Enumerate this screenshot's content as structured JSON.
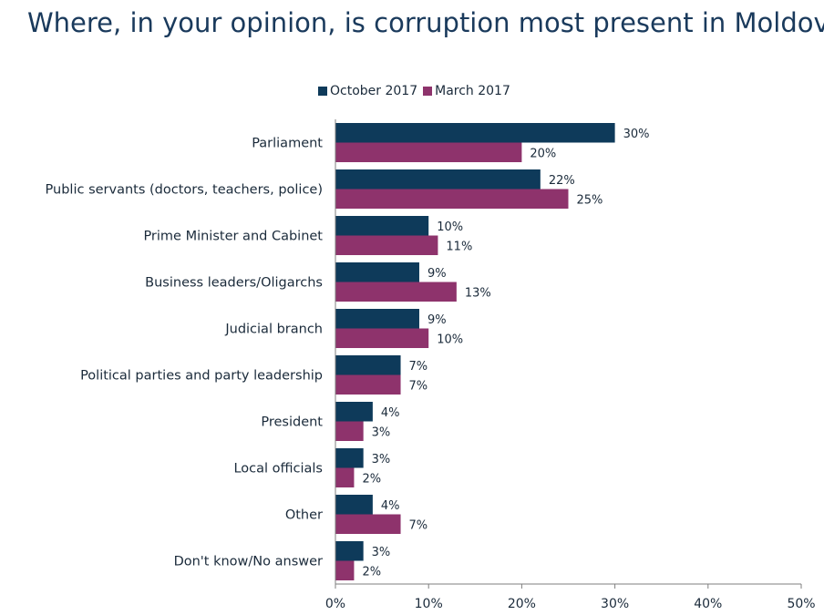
{
  "title": "Where, in your opinion, is corruption most present in Moldova?",
  "chart_data": {
    "type": "bar",
    "orientation": "horizontal",
    "categories": [
      "Parliament",
      "Public servants (doctors, teachers, police)",
      "Prime Minister and Cabinet",
      "Business leaders/Oligarchs",
      "Judicial branch",
      "Political parties and party leadership",
      "President",
      "Local officials",
      "Other",
      "Don't know/No answer"
    ],
    "series": [
      {
        "name": "October 2017",
        "color": "#0e3a5a",
        "values": [
          30,
          22,
          10,
          9,
          9,
          7,
          4,
          3,
          4,
          3
        ]
      },
      {
        "name": "March 2017",
        "color": "#8e336c",
        "values": [
          20,
          25,
          11,
          13,
          10,
          7,
          3,
          2,
          7,
          2
        ]
      }
    ],
    "value_labels": [
      [
        "30%",
        "22%",
        "10%",
        "9%",
        "9%",
        "7%",
        "4%",
        "3%",
        "4%",
        "3%"
      ],
      [
        "20%",
        "25%",
        "11%",
        "13%",
        "10%",
        "7%",
        "3%",
        "2%",
        "7%",
        "2%"
      ]
    ],
    "xlim": [
      0,
      50
    ],
    "xticks": [
      0,
      10,
      20,
      30,
      40,
      50
    ],
    "xtick_labels": [
      "0%",
      "10%",
      "20%",
      "30%",
      "40%",
      "50%"
    ],
    "legend_position": "top",
    "grid": false
  }
}
